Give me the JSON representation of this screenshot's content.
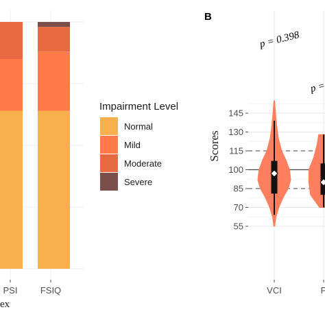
{
  "chart_data": [
    {
      "type": "bar",
      "stacked": true,
      "percent": true,
      "categories": [
        "PSI",
        "FSIQ"
      ],
      "series": [
        {
          "name": "Normal",
          "values": [
            0.64,
            0.64
          ],
          "color": "#F7B04B"
        },
        {
          "name": "Mild",
          "values": [
            0.21,
            0.24
          ],
          "color": "#FF7A48"
        },
        {
          "name": "Moderate",
          "values": [
            0.15,
            0.1
          ],
          "color": "#E86A40"
        },
        {
          "name": "Severe",
          "values": [
            0.0,
            0.02
          ],
          "color": "#7A4F4A"
        }
      ],
      "xlabel": "ex",
      "ylim": [
        0,
        1
      ],
      "grid": true,
      "legend": {
        "title": "Impairment Level",
        "placement": "right",
        "entries": [
          "Normal",
          "Mild",
          "Moderate",
          "Severe"
        ]
      }
    },
    {
      "type": "violin",
      "panel_label": "B",
      "categories": [
        "VCI",
        "P"
      ],
      "ylabel": "Scores",
      "yticks": [
        55,
        70,
        85,
        100,
        115,
        130,
        145
      ],
      "ylim": [
        38,
        162
      ],
      "reference_lines": [
        {
          "value": 100,
          "style": "solid"
        },
        {
          "value": 115,
          "style": "dashed"
        },
        {
          "value": 85,
          "style": "dashed"
        }
      ],
      "annotations": [
        "p = 0.398",
        "p ="
      ],
      "grid": true,
      "violin_color": "#FF7F5E",
      "series": [
        {
          "category": "VCI",
          "mean": 97,
          "median": 95,
          "q1": 81,
          "q3": 107,
          "whisker_low": 64,
          "whisker_high": 139,
          "range": [
            55,
            155
          ],
          "density": [
            [
              55,
              0.03
            ],
            [
              62,
              0.1
            ],
            [
              70,
              0.28
            ],
            [
              78,
              0.55
            ],
            [
              85,
              0.85
            ],
            [
              92,
              1.0
            ],
            [
              100,
              0.93
            ],
            [
              108,
              0.7
            ],
            [
              115,
              0.45
            ],
            [
              125,
              0.25
            ],
            [
              135,
              0.15
            ],
            [
              145,
              0.08
            ],
            [
              155,
              0.02
            ]
          ]
        },
        {
          "category": "P",
          "mean": 90,
          "median": 90,
          "q1": 80,
          "q3": 105,
          "whisker_low": 70,
          "whisker_high": 128,
          "range": [
            70,
            128
          ],
          "density": [
            [
              70,
              0.25
            ],
            [
              80,
              0.8
            ],
            [
              90,
              0.9
            ],
            [
              100,
              0.9
            ],
            [
              110,
              0.6
            ],
            [
              120,
              0.4
            ],
            [
              128,
              0.3
            ]
          ]
        }
      ]
    }
  ]
}
